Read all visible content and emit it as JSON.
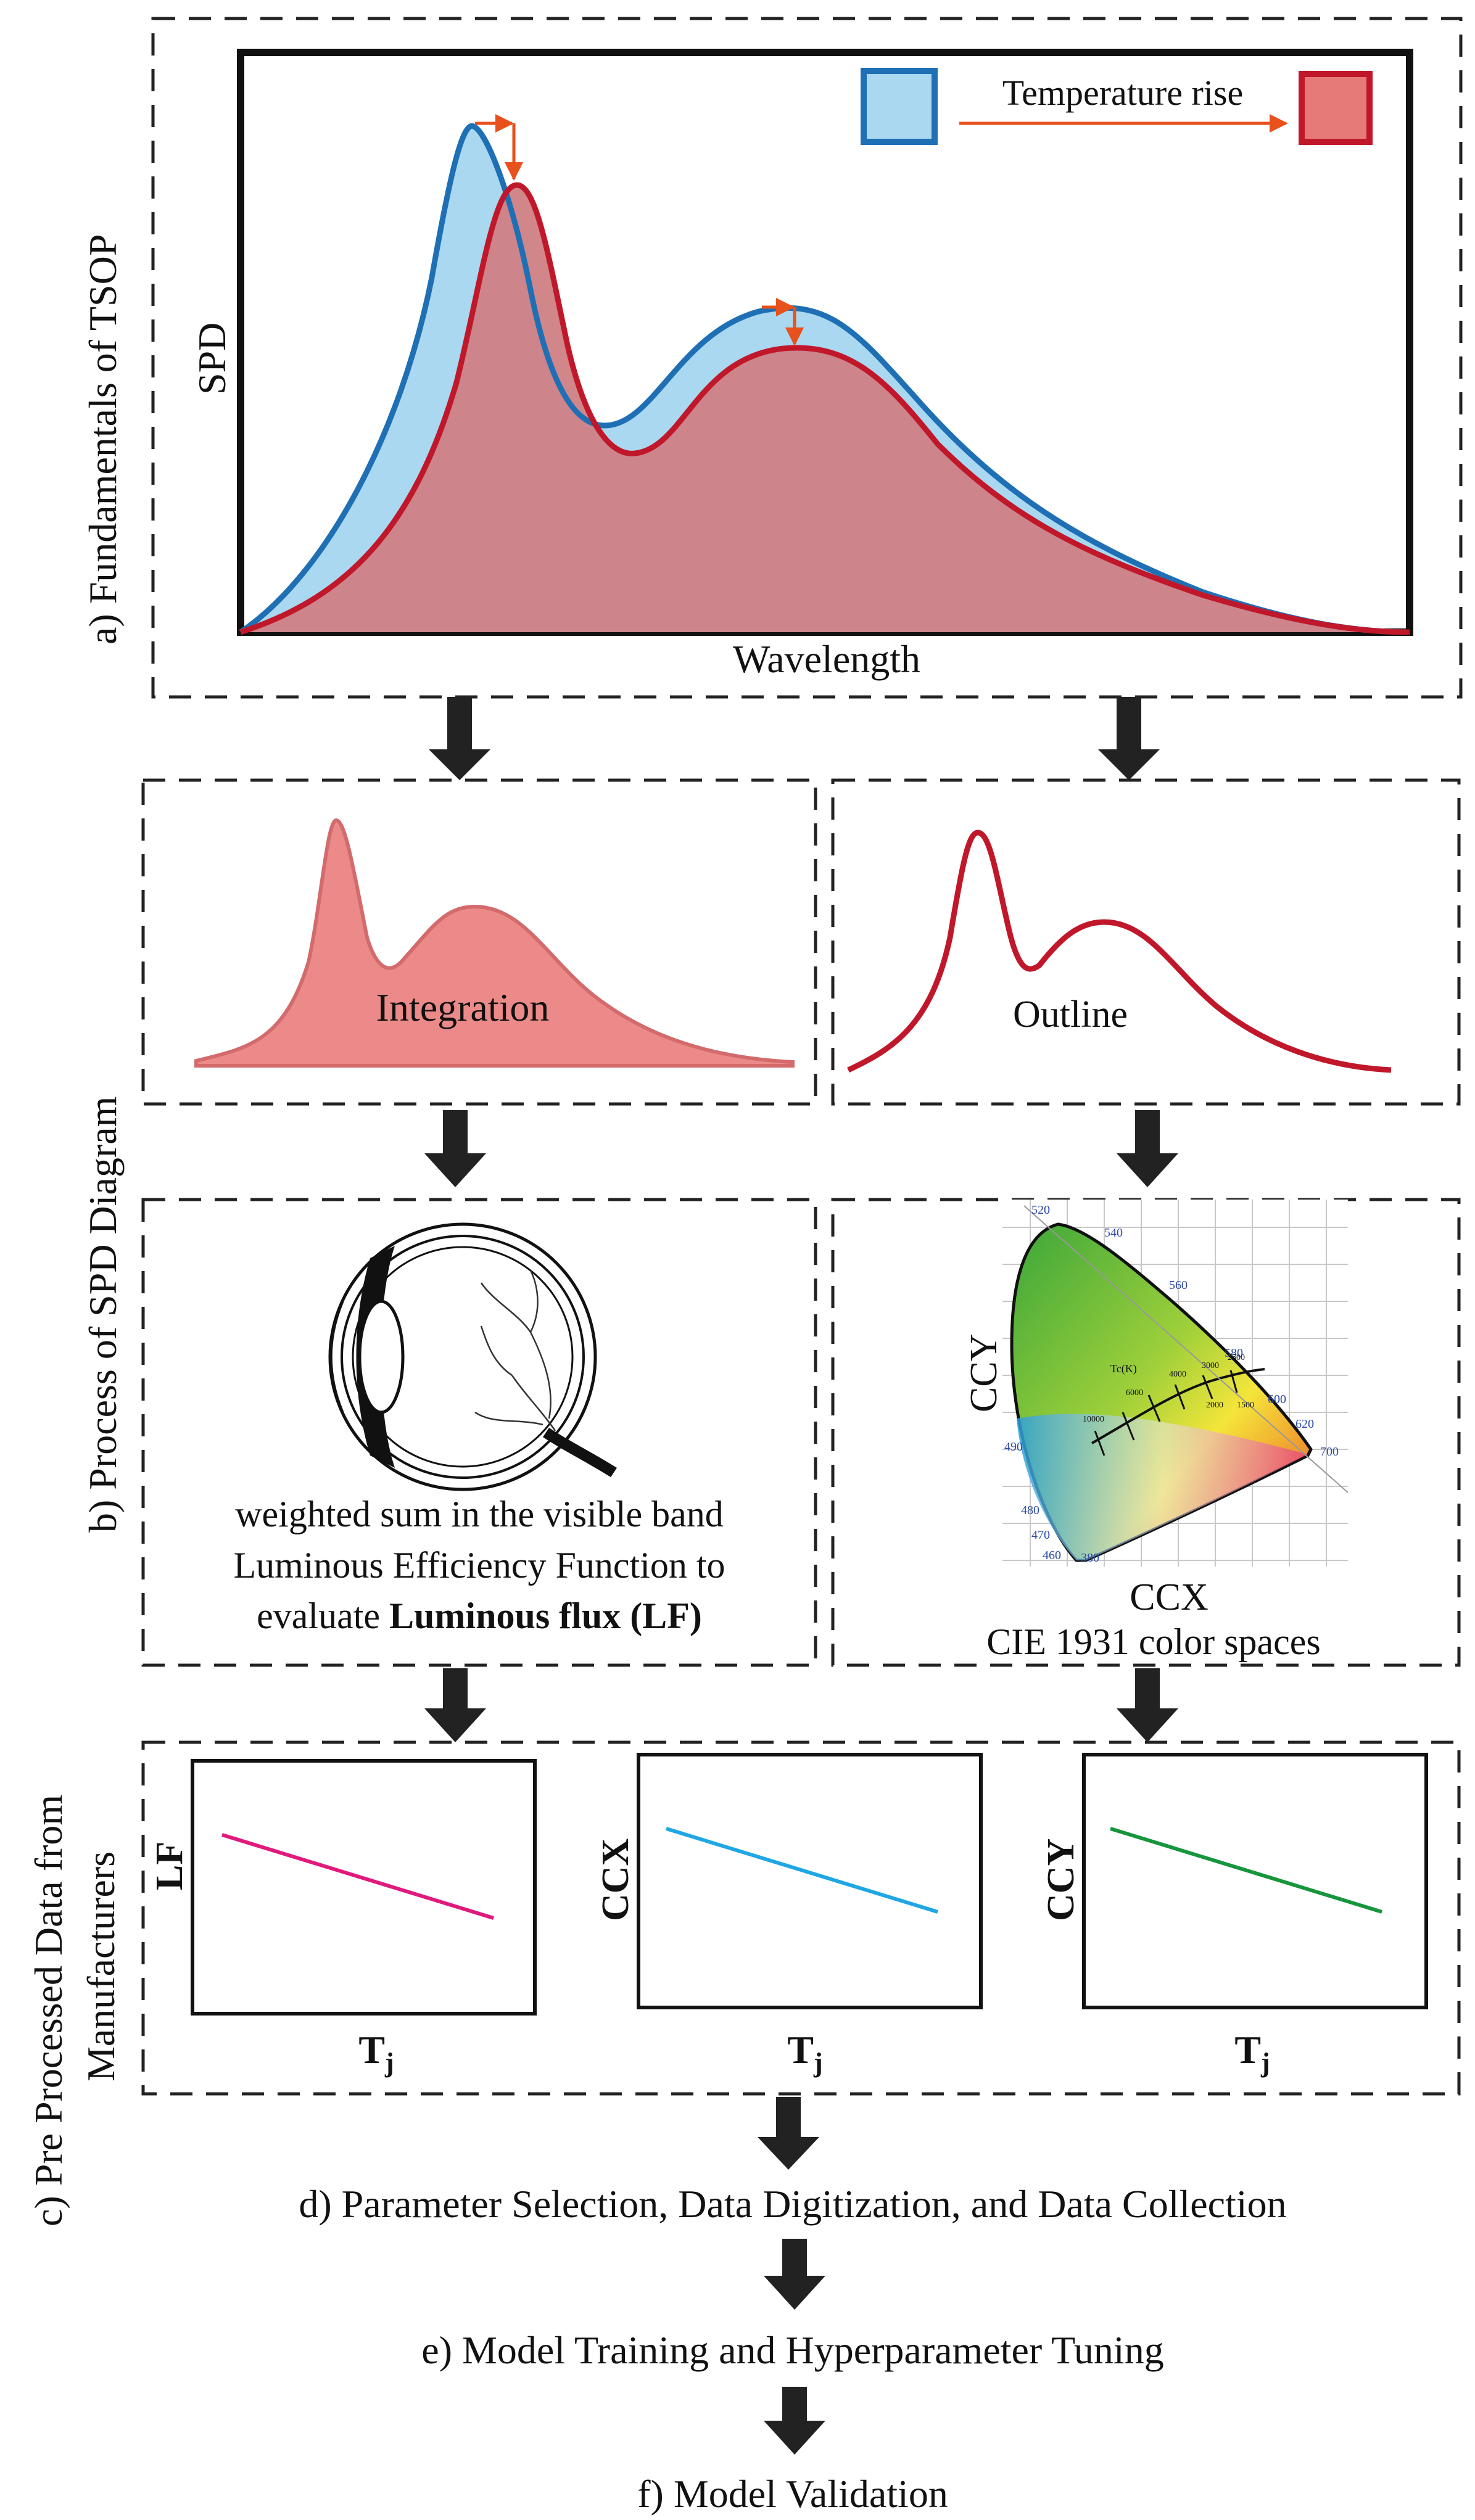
{
  "section_a": {
    "label": "a) Fundamentals of TSOP",
    "ylabel": "SPD",
    "xlabel": "Wavelength",
    "legend_text": "Temperature rise",
    "colors": {
      "before": "#1f6fb5",
      "before_fill": "#a9d8f0",
      "after": "#c0182a",
      "after_fill": "#e57a78"
    }
  },
  "section_b": {
    "label": "b) Process of SPD Diagram",
    "integration_text": "Integration",
    "outline_text": "Outline",
    "lf_text": {
      "line1": "weighted sum  in the visible band",
      "line2": "Luminous Efficiency Function to",
      "line3_prefix": "evaluate ",
      "line3_bold": "Luminous flux (LF)"
    },
    "cie": {
      "ylabel": "CCY",
      "xlabel": "CCX",
      "caption": "CIE 1931 color spaces",
      "wavelength_labels": [
        "520",
        "540",
        "560",
        "580",
        "600",
        "620",
        "700",
        "490",
        "480",
        "470",
        "460",
        "380"
      ],
      "tc_label": "Tc(K)",
      "temperature_labels": [
        "10000",
        "6000",
        "4000",
        "3000",
        "2500",
        "2000",
        "1500"
      ]
    }
  },
  "section_c": {
    "label_line1": "c) Pre Processed Data from",
    "label_line2": "Manufacturers",
    "plots": [
      {
        "ylabel": "LF",
        "xlabel": "T",
        "xsub": "j",
        "color": "#e0197d"
      },
      {
        "ylabel": "CCX",
        "xlabel": "T",
        "xsub": "j",
        "color": "#1ea7e4"
      },
      {
        "ylabel": "CCY",
        "xlabel": "T",
        "xsub": "j",
        "color": "#17953c"
      }
    ]
  },
  "steps": {
    "d": "d) Parameter Selection, Data Digitization, and Data Collection",
    "e": "e) Model Training and Hyperparameter Tuning",
    "f": "f) Model Validation"
  }
}
